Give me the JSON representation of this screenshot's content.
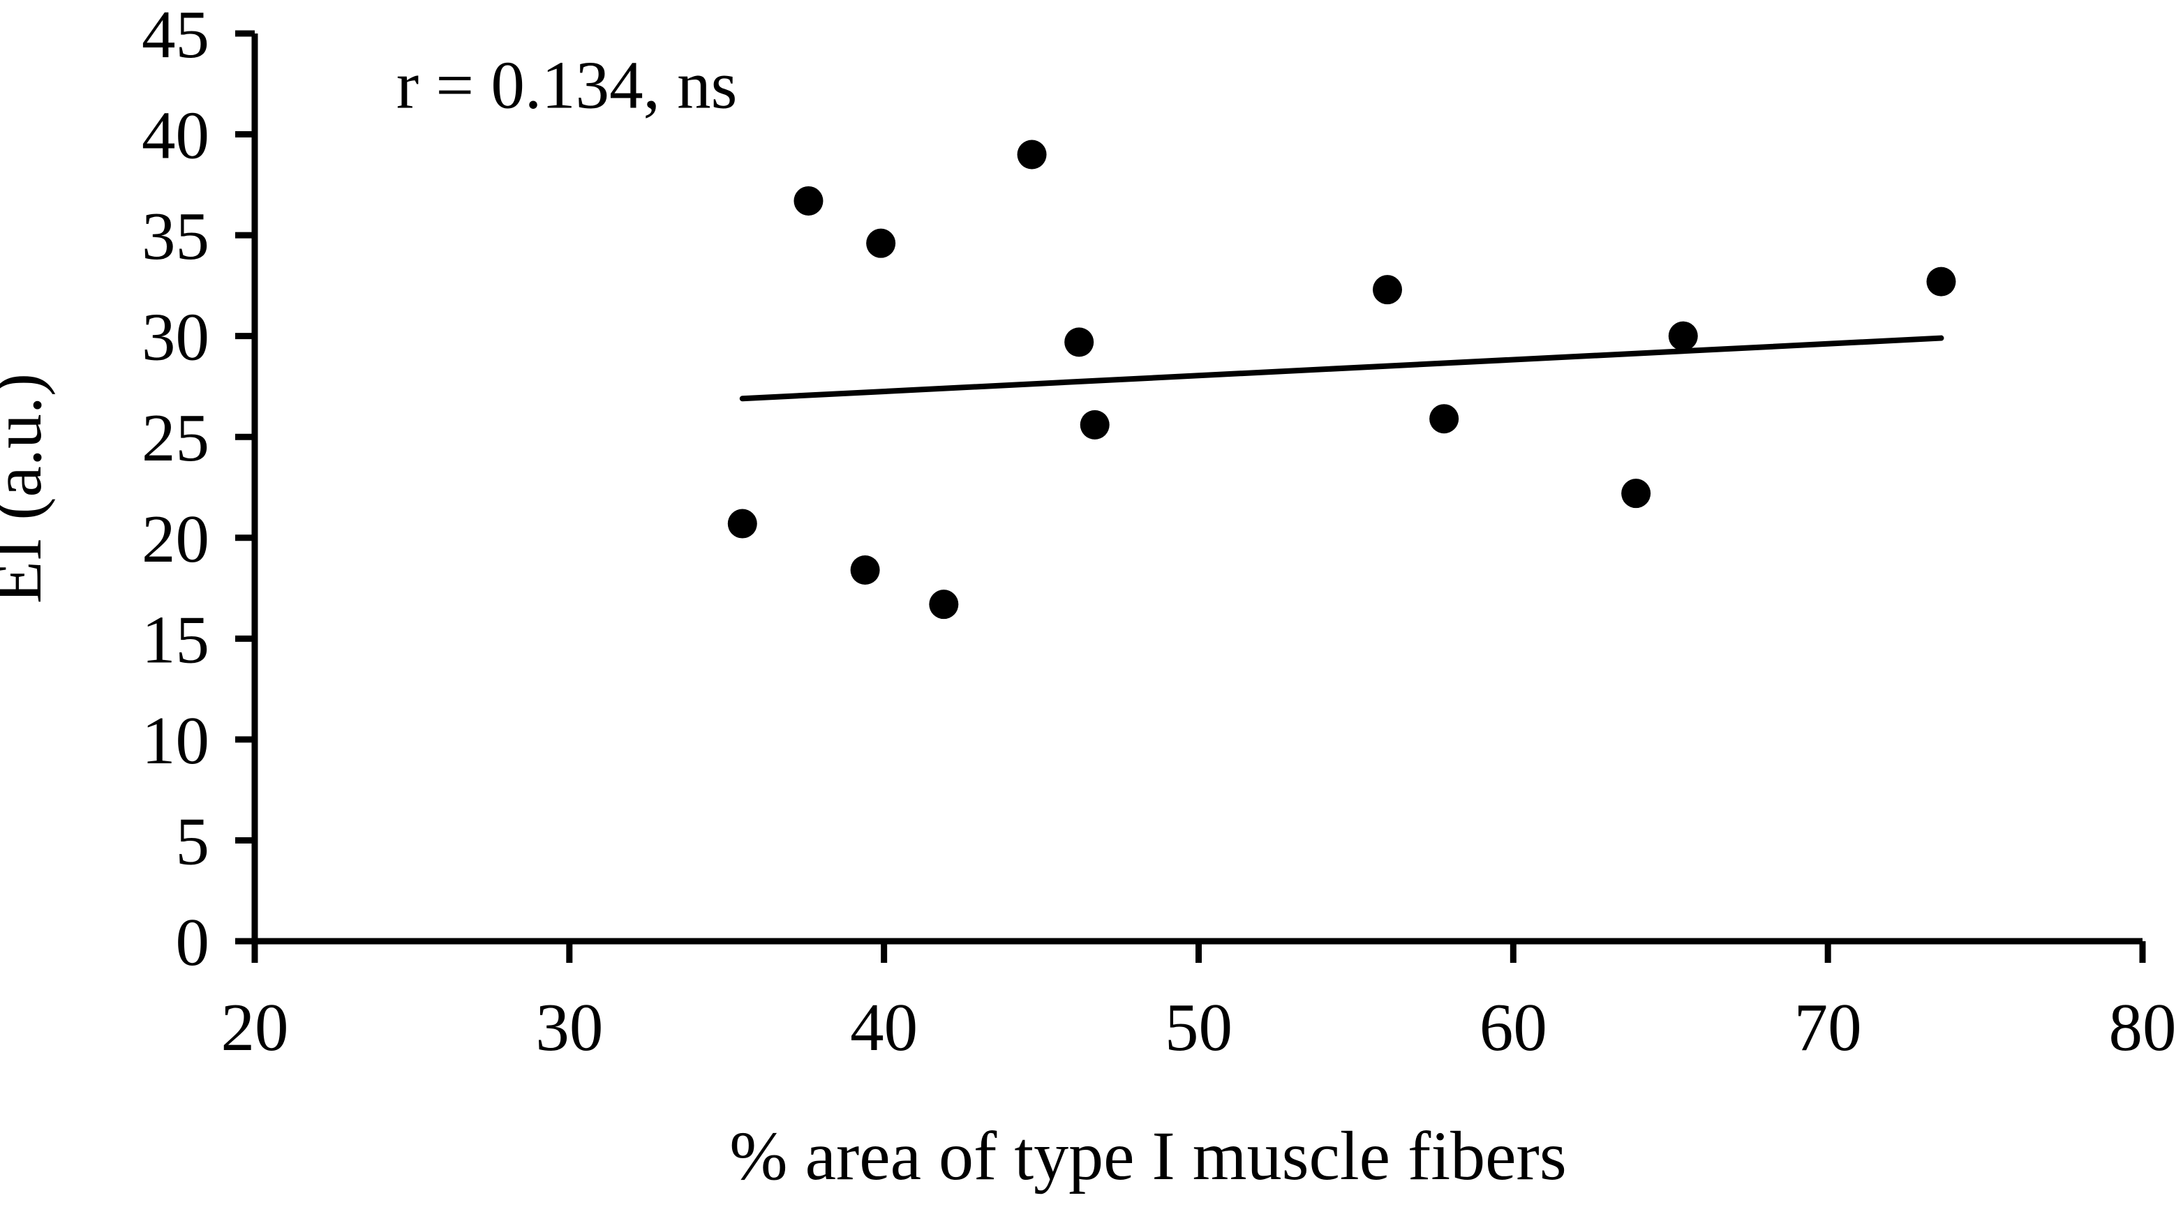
{
  "figure": {
    "background": "#ffffff",
    "ink_color": "#000000"
  },
  "chart_data": {
    "type": "scatter",
    "title": "",
    "xlabel": "% area of type I muscle fibers",
    "ylabel": "EI (a.u.)",
    "xlim": [
      20,
      80
    ],
    "ylim": [
      0,
      45
    ],
    "xticks": [
      20,
      30,
      40,
      50,
      60,
      70,
      80
    ],
    "yticks": [
      0,
      5,
      10,
      15,
      20,
      25,
      30,
      35,
      40,
      45
    ],
    "grid": false,
    "legend_position": "none",
    "annotation": {
      "text": "r = 0.134, ns",
      "x": 24.5,
      "y": 42.5
    },
    "series": [
      {
        "name": "data-points",
        "type": "scatter",
        "marker": "circle",
        "color": "#000000",
        "points": [
          [
            35.5,
            20.7
          ],
          [
            37.6,
            36.7
          ],
          [
            39.4,
            18.4
          ],
          [
            39.9,
            34.6
          ],
          [
            41.9,
            16.7
          ],
          [
            44.7,
            39.0
          ],
          [
            46.2,
            29.7
          ],
          [
            46.7,
            25.6
          ],
          [
            56.0,
            32.3
          ],
          [
            57.8,
            25.9
          ],
          [
            63.9,
            22.2
          ],
          [
            65.4,
            30.0
          ],
          [
            73.6,
            32.7
          ]
        ]
      },
      {
        "name": "linear-fit",
        "type": "line",
        "color": "#000000",
        "points": [
          [
            35.5,
            26.9
          ],
          [
            73.6,
            29.9
          ]
        ]
      }
    ]
  }
}
